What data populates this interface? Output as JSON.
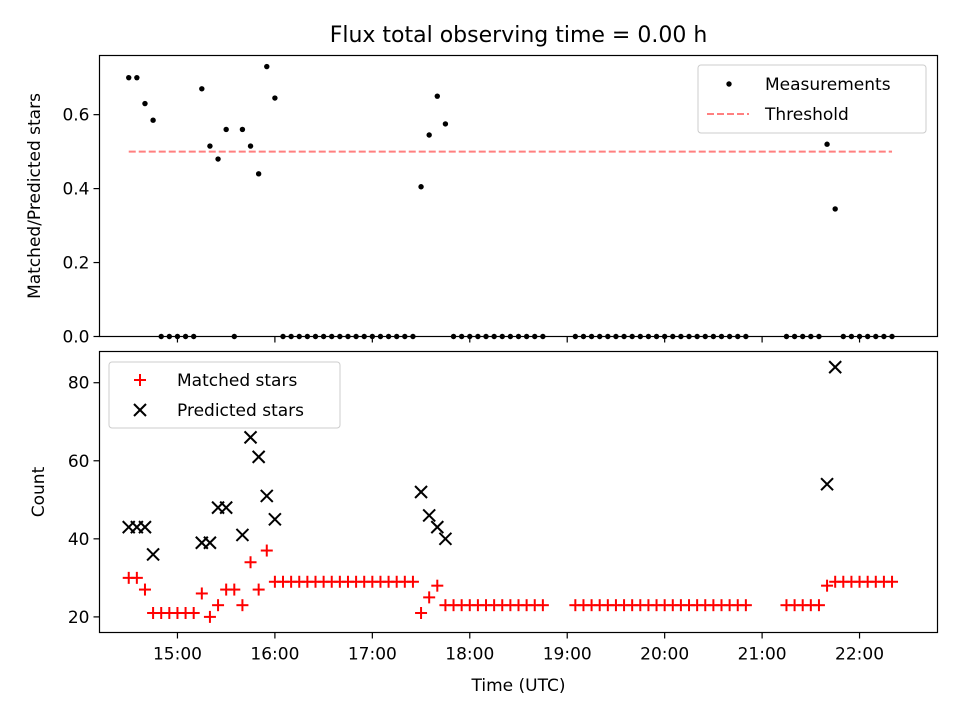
{
  "title": "Flux total observing time = 0.00 h",
  "colors": {
    "measurements": "#000000",
    "threshold": "#ff7f7f",
    "matched": "#ff0000",
    "predicted": "#000000"
  },
  "chart_data": [
    {
      "type": "scatter",
      "title": "Flux total observing time = 0.00 h",
      "ylabel": "Matched/Predicted stars",
      "xlim": [
        "14:12",
        "22:48"
      ],
      "ylim": [
        0,
        0.76
      ],
      "y_ticks": [
        "0.0",
        "0.2",
        "0.4",
        "0.6"
      ],
      "legend_position": "top-right",
      "series": [
        {
          "name": "Measurements",
          "marker": "dot",
          "points": [
            [
              "14:30",
              0.7
            ],
            [
              "14:35",
              0.7
            ],
            [
              "14:40",
              0.63
            ],
            [
              "14:45",
              0.585
            ],
            [
              "14:50",
              0
            ],
            [
              "14:55",
              0
            ],
            [
              "15:00",
              0
            ],
            [
              "15:05",
              0
            ],
            [
              "15:10",
              0
            ],
            [
              "15:15",
              0.67
            ],
            [
              "15:20",
              0.515
            ],
            [
              "15:25",
              0.48
            ],
            [
              "15:30",
              0.56
            ],
            [
              "15:35",
              0
            ],
            [
              "15:40",
              0.56
            ],
            [
              "15:45",
              0.515
            ],
            [
              "15:50",
              0.44
            ],
            [
              "15:55",
              0.73
            ],
            [
              "16:00",
              0.645
            ],
            [
              "16:05",
              0
            ],
            [
              "16:10",
              0
            ],
            [
              "16:15",
              0
            ],
            [
              "16:20",
              0
            ],
            [
              "16:25",
              0
            ],
            [
              "16:30",
              0
            ],
            [
              "16:35",
              0
            ],
            [
              "16:40",
              0
            ],
            [
              "16:45",
              0
            ],
            [
              "16:50",
              0
            ],
            [
              "16:55",
              0
            ],
            [
              "17:00",
              0
            ],
            [
              "17:05",
              0
            ],
            [
              "17:10",
              0
            ],
            [
              "17:15",
              0
            ],
            [
              "17:20",
              0
            ],
            [
              "17:25",
              0
            ],
            [
              "17:30",
              0.405
            ],
            [
              "17:35",
              0.545
            ],
            [
              "17:40",
              0.65
            ],
            [
              "17:45",
              0.575
            ],
            [
              "17:50",
              0
            ],
            [
              "17:55",
              0
            ],
            [
              "18:00",
              0
            ],
            [
              "18:05",
              0
            ],
            [
              "18:10",
              0
            ],
            [
              "18:15",
              0
            ],
            [
              "18:20",
              0
            ],
            [
              "18:25",
              0
            ],
            [
              "18:30",
              0
            ],
            [
              "18:35",
              0
            ],
            [
              "18:40",
              0
            ],
            [
              "18:45",
              0
            ],
            [
              "19:05",
              0
            ],
            [
              "19:10",
              0
            ],
            [
              "19:15",
              0
            ],
            [
              "19:20",
              0
            ],
            [
              "19:25",
              0
            ],
            [
              "19:30",
              0
            ],
            [
              "19:35",
              0
            ],
            [
              "19:40",
              0
            ],
            [
              "19:45",
              0
            ],
            [
              "19:50",
              0
            ],
            [
              "19:55",
              0
            ],
            [
              "20:00",
              0
            ],
            [
              "20:05",
              0
            ],
            [
              "20:10",
              0
            ],
            [
              "20:15",
              0
            ],
            [
              "20:20",
              0
            ],
            [
              "20:25",
              0
            ],
            [
              "20:30",
              0
            ],
            [
              "20:35",
              0
            ],
            [
              "20:40",
              0
            ],
            [
              "20:45",
              0
            ],
            [
              "20:50",
              0
            ],
            [
              "21:15",
              0
            ],
            [
              "21:20",
              0
            ],
            [
              "21:25",
              0
            ],
            [
              "21:30",
              0
            ],
            [
              "21:35",
              0
            ],
            [
              "21:40",
              0.52
            ],
            [
              "21:45",
              0.345
            ],
            [
              "21:50",
              0
            ],
            [
              "21:55",
              0
            ],
            [
              "22:00",
              0
            ],
            [
              "22:05",
              0
            ],
            [
              "22:10",
              0
            ],
            [
              "22:15",
              0
            ],
            [
              "22:20",
              0
            ]
          ]
        },
        {
          "name": "Threshold",
          "style": "dashed",
          "points": [
            [
              "14:30",
              0.5
            ],
            [
              "22:20",
              0.5
            ]
          ]
        }
      ]
    },
    {
      "type": "scatter",
      "xlabel": "Time (UTC)",
      "ylabel": "Count",
      "xlim": [
        "14:12",
        "22:48"
      ],
      "ylim": [
        16,
        88
      ],
      "x_ticks": [
        "15:00",
        "16:00",
        "17:00",
        "18:00",
        "19:00",
        "20:00",
        "21:00",
        "22:00"
      ],
      "y_ticks": [
        "20",
        "40",
        "60",
        "80"
      ],
      "legend_position": "top-left",
      "series": [
        {
          "name": "Matched stars",
          "marker": "plus",
          "points": [
            [
              "14:30",
              30
            ],
            [
              "14:35",
              30
            ],
            [
              "14:40",
              27
            ],
            [
              "14:45",
              21
            ],
            [
              "14:50",
              21
            ],
            [
              "14:55",
              21
            ],
            [
              "15:00",
              21
            ],
            [
              "15:05",
              21
            ],
            [
              "15:10",
              21
            ],
            [
              "15:15",
              26
            ],
            [
              "15:20",
              20
            ],
            [
              "15:25",
              23
            ],
            [
              "15:30",
              27
            ],
            [
              "15:35",
              27
            ],
            [
              "15:40",
              23
            ],
            [
              "15:45",
              34
            ],
            [
              "15:50",
              27
            ],
            [
              "15:55",
              37
            ],
            [
              "16:00",
              29
            ],
            [
              "16:05",
              29
            ],
            [
              "16:10",
              29
            ],
            [
              "16:15",
              29
            ],
            [
              "16:20",
              29
            ],
            [
              "16:25",
              29
            ],
            [
              "16:30",
              29
            ],
            [
              "16:35",
              29
            ],
            [
              "16:40",
              29
            ],
            [
              "16:45",
              29
            ],
            [
              "16:50",
              29
            ],
            [
              "16:55",
              29
            ],
            [
              "17:00",
              29
            ],
            [
              "17:05",
              29
            ],
            [
              "17:10",
              29
            ],
            [
              "17:15",
              29
            ],
            [
              "17:20",
              29
            ],
            [
              "17:25",
              29
            ],
            [
              "17:30",
              21
            ],
            [
              "17:35",
              25
            ],
            [
              "17:40",
              28
            ],
            [
              "17:45",
              23
            ],
            [
              "17:50",
              23
            ],
            [
              "17:55",
              23
            ],
            [
              "18:00",
              23
            ],
            [
              "18:05",
              23
            ],
            [
              "18:10",
              23
            ],
            [
              "18:15",
              23
            ],
            [
              "18:20",
              23
            ],
            [
              "18:25",
              23
            ],
            [
              "18:30",
              23
            ],
            [
              "18:35",
              23
            ],
            [
              "18:40",
              23
            ],
            [
              "18:45",
              23
            ],
            [
              "19:05",
              23
            ],
            [
              "19:10",
              23
            ],
            [
              "19:15",
              23
            ],
            [
              "19:20",
              23
            ],
            [
              "19:25",
              23
            ],
            [
              "19:30",
              23
            ],
            [
              "19:35",
              23
            ],
            [
              "19:40",
              23
            ],
            [
              "19:45",
              23
            ],
            [
              "19:50",
              23
            ],
            [
              "19:55",
              23
            ],
            [
              "20:00",
              23
            ],
            [
              "20:05",
              23
            ],
            [
              "20:10",
              23
            ],
            [
              "20:15",
              23
            ],
            [
              "20:20",
              23
            ],
            [
              "20:25",
              23
            ],
            [
              "20:30",
              23
            ],
            [
              "20:35",
              23
            ],
            [
              "20:40",
              23
            ],
            [
              "20:45",
              23
            ],
            [
              "20:50",
              23
            ],
            [
              "21:15",
              23
            ],
            [
              "21:20",
              23
            ],
            [
              "21:25",
              23
            ],
            [
              "21:30",
              23
            ],
            [
              "21:35",
              23
            ],
            [
              "21:40",
              28
            ],
            [
              "21:45",
              29
            ],
            [
              "21:50",
              29
            ],
            [
              "21:55",
              29
            ],
            [
              "22:00",
              29
            ],
            [
              "22:05",
              29
            ],
            [
              "22:10",
              29
            ],
            [
              "22:15",
              29
            ],
            [
              "22:20",
              29
            ]
          ]
        },
        {
          "name": "Predicted stars",
          "marker": "x",
          "points": [
            [
              "14:30",
              43
            ],
            [
              "14:35",
              43
            ],
            [
              "14:40",
              43
            ],
            [
              "14:45",
              36
            ],
            [
              "15:15",
              39
            ],
            [
              "15:20",
              39
            ],
            [
              "15:25",
              48
            ],
            [
              "15:30",
              48
            ],
            [
              "15:40",
              41
            ],
            [
              "15:45",
              66
            ],
            [
              "15:50",
              61
            ],
            [
              "15:55",
              51
            ],
            [
              "16:00",
              45
            ],
            [
              "17:30",
              52
            ],
            [
              "17:35",
              46
            ],
            [
              "17:40",
              43
            ],
            [
              "17:45",
              40
            ],
            [
              "21:40",
              54
            ],
            [
              "21:45",
              84
            ]
          ]
        }
      ]
    }
  ]
}
